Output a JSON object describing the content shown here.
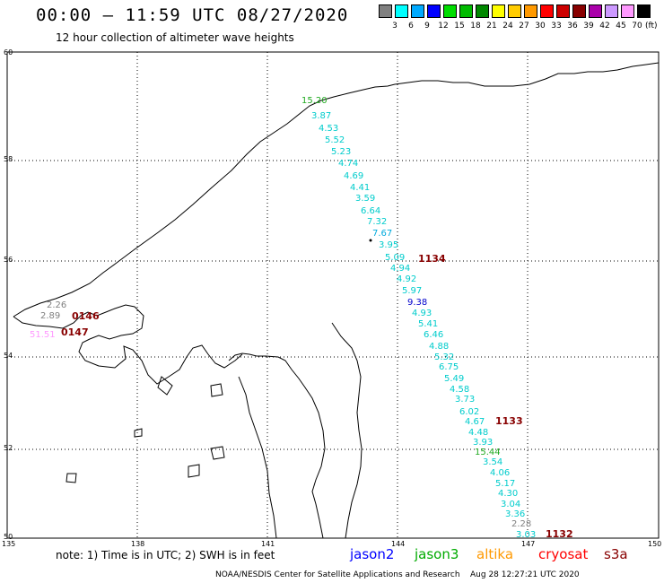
{
  "header": {
    "title": "00:00 — 11:59 UTC 08/27/2020",
    "subtitle": "12 hour collection of altimeter wave heights"
  },
  "scale": {
    "unit": "(ft)",
    "bins": [
      {
        "color": "#808080",
        "label": "3"
      },
      {
        "color": "#00ffff",
        "label": "6"
      },
      {
        "color": "#00aaff",
        "label": "9"
      },
      {
        "color": "#0000ff",
        "label": "12"
      },
      {
        "color": "#00dd00",
        "label": "15"
      },
      {
        "color": "#00bb00",
        "label": "18"
      },
      {
        "color": "#008800",
        "label": "21"
      },
      {
        "color": "#ffff00",
        "label": "24"
      },
      {
        "color": "#ffcc00",
        "label": "27"
      },
      {
        "color": "#ff9900",
        "label": "30"
      },
      {
        "color": "#ff0000",
        "label": "33"
      },
      {
        "color": "#cc0000",
        "label": "36"
      },
      {
        "color": "#880000",
        "label": "39"
      },
      {
        "color": "#aa00aa",
        "label": "42"
      },
      {
        "color": "#cc99ff",
        "label": "45"
      },
      {
        "color": "#ff99ff",
        "label": "70"
      },
      {
        "color": "#000000",
        "label": ""
      }
    ]
  },
  "grid": {
    "lat_labels": [
      "60",
      "58",
      "56",
      "54",
      "52",
      "50"
    ],
    "lon_labels": [
      "135",
      "138",
      "141",
      "144",
      "147",
      "150"
    ]
  },
  "observations": [
    {
      "text": "15.20",
      "color": "#22aa22"
    },
    {
      "text": "3.87",
      "color": "#00cccc"
    },
    {
      "text": "4.53",
      "color": "#00cccc"
    },
    {
      "text": "5.52",
      "color": "#00cccc"
    },
    {
      "text": "5.23",
      "color": "#00cccc"
    },
    {
      "text": "4.74",
      "color": "#00cccc"
    },
    {
      "text": "4.69",
      "color": "#00cccc"
    },
    {
      "text": "4.41",
      "color": "#00cccc"
    },
    {
      "text": "3.59",
      "color": "#00cccc"
    },
    {
      "text": "6.64",
      "color": "#00cccc"
    },
    {
      "text": "7.32",
      "color": "#00cccc"
    },
    {
      "text": "7.67",
      "color": "#00aadd"
    },
    {
      "text": "3.95",
      "color": "#00cccc"
    },
    {
      "text": "5.09",
      "color": "#00cccc"
    },
    {
      "text": "4.94",
      "color": "#00cccc"
    },
    {
      "text": "4.92",
      "color": "#00cccc"
    },
    {
      "text": "5.97",
      "color": "#00cccc"
    },
    {
      "text": "9.38",
      "color": "#0000cc"
    },
    {
      "text": "4.93",
      "color": "#00cccc"
    },
    {
      "text": "5.41",
      "color": "#00cccc"
    },
    {
      "text": "6.46",
      "color": "#00cccc"
    },
    {
      "text": "4.88",
      "color": "#00cccc"
    },
    {
      "text": "5.32",
      "color": "#00cccc"
    },
    {
      "text": "6.75",
      "color": "#00cccc"
    },
    {
      "text": "5.49",
      "color": "#00cccc"
    },
    {
      "text": "4.58",
      "color": "#00cccc"
    },
    {
      "text": "3.73",
      "color": "#00cccc"
    },
    {
      "text": "6.02",
      "color": "#00cccc"
    },
    {
      "text": "4.67",
      "color": "#00cccc"
    },
    {
      "text": "4.48",
      "color": "#00cccc"
    },
    {
      "text": "3.93",
      "color": "#00cccc"
    },
    {
      "text": "15.44",
      "color": "#22aa22"
    },
    {
      "text": "3.54",
      "color": "#00cccc"
    },
    {
      "text": "4.06",
      "color": "#00cccc"
    },
    {
      "text": "5.17",
      "color": "#00cccc"
    },
    {
      "text": "4.30",
      "color": "#00cccc"
    },
    {
      "text": "3.04",
      "color": "#00cccc"
    },
    {
      "text": "3.36",
      "color": "#00cccc"
    },
    {
      "text": "2.28",
      "color": "#808080"
    },
    {
      "text": "3.03",
      "color": "#00cccc"
    },
    {
      "text": "2.26",
      "color": "#808080"
    },
    {
      "text": "2.89",
      "color": "#808080"
    },
    {
      "text": "51.51",
      "color": "#ff99ff"
    }
  ],
  "timestamps": [
    {
      "text": "1134",
      "color": "#880000"
    },
    {
      "text": "1133",
      "color": "#880000"
    },
    {
      "text": "1132",
      "color": "#880000"
    },
    {
      "text": "0146",
      "color": "#880000"
    },
    {
      "text": "0147",
      "color": "#880000"
    }
  ],
  "footer": {
    "note": "note:  1) Time is in UTC; 2) SWH is in feet",
    "legend": [
      {
        "text": "jason2",
        "color": "#0000ff"
      },
      {
        "text": "jason3",
        "color": "#00aa00"
      },
      {
        "text": "altika",
        "color": "#ff9900"
      },
      {
        "text": "cryosat",
        "color": "#ff0000"
      },
      {
        "text": "s3a",
        "color": "#880000"
      }
    ],
    "credit": "NOAA/NESDIS Center for Satellite Applications and Research    Aug 28 12:27:21 UTC 2020"
  }
}
